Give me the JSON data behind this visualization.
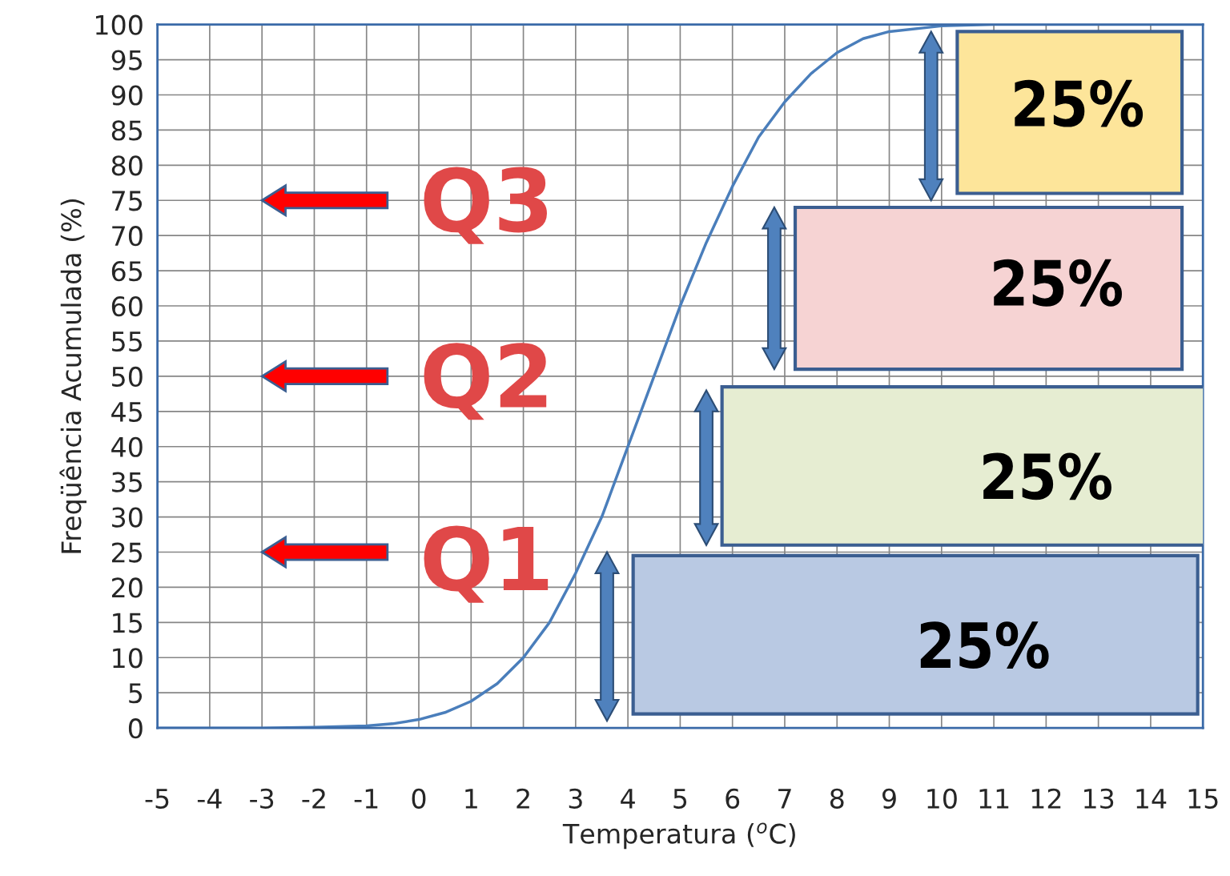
{
  "chart_data": {
    "type": "line",
    "xlabel": "Temperatura ($^{o}$C)",
    "ylabel": "Freqüência Acumulada (%)",
    "x": [
      -5,
      -4,
      -3,
      -2,
      -1,
      -0.5,
      0,
      0.5,
      1,
      1.5,
      2,
      2.5,
      3,
      3.5,
      4,
      4.5,
      5,
      5.5,
      6,
      6.5,
      7,
      7.5,
      8,
      8.5,
      9,
      10,
      11,
      12,
      13,
      14,
      15
    ],
    "series": [
      {
        "color": "#4a7ebb",
        "values": [
          0,
          0,
          0,
          0.1,
          0.3,
          0.6,
          1.2,
          2.2,
          3.8,
          6.3,
          10,
          15,
          22,
          30,
          40,
          50,
          60,
          69,
          77,
          84,
          89,
          93,
          96,
          98,
          99,
          99.8,
          100,
          100,
          100,
          100,
          100
        ]
      }
    ],
    "xlim": [
      -5,
      15
    ],
    "xticks": [
      -5,
      -4,
      -3,
      -2,
      -1,
      0,
      1,
      2,
      3,
      4,
      5,
      6,
      7,
      8,
      9,
      10,
      11,
      12,
      13,
      14,
      15
    ],
    "ylim": [
      0,
      100
    ],
    "yticks": [
      0,
      5,
      10,
      15,
      20,
      25,
      30,
      35,
      40,
      45,
      50,
      55,
      60,
      65,
      70,
      75,
      80,
      85,
      90,
      95,
      100
    ],
    "grid": true,
    "legend": false,
    "marker": "none",
    "line_style": "solid",
    "annotations": [
      "Q3",
      "Q2",
      "Q1",
      "25%",
      "25%",
      "25%",
      "25%"
    ]
  }
}
